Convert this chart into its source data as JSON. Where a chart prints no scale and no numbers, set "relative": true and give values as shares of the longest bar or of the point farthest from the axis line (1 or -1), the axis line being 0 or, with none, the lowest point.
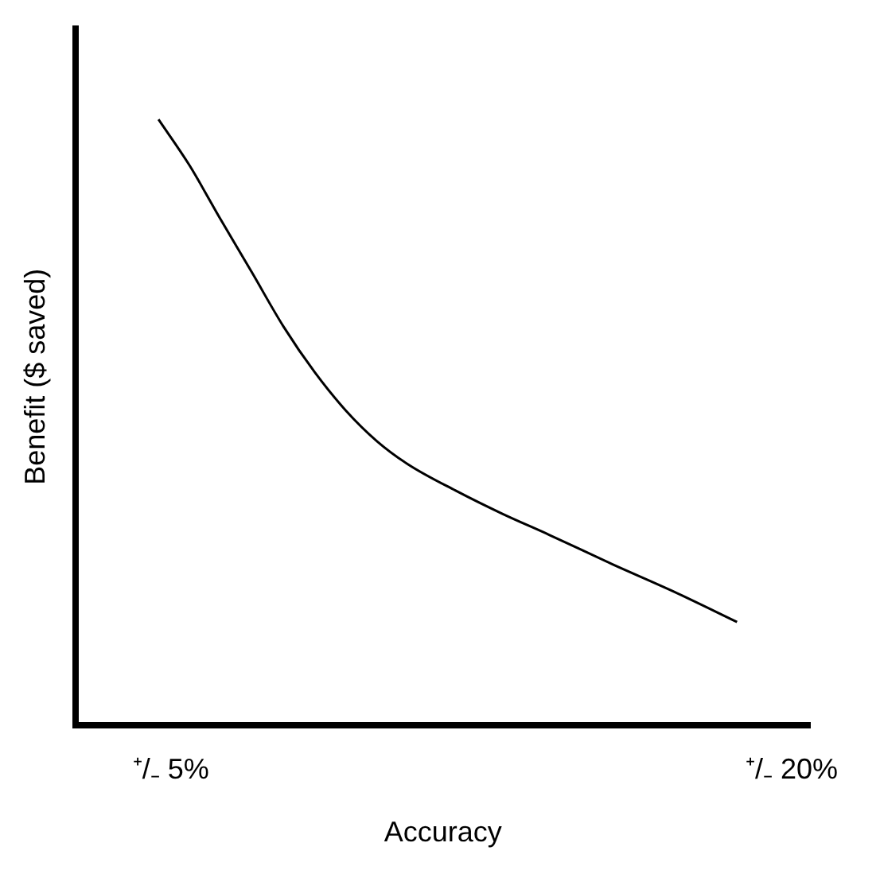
{
  "chart_data": {
    "type": "line",
    "xlabel": "Accuracy",
    "ylabel": "Benefit ($ saved)",
    "relative": true,
    "grid": false,
    "legend": false,
    "marker": "none",
    "line_style": "solid",
    "xlim": [
      2.7,
      20.45
    ],
    "xticks": [
      {
        "value": 5,
        "label": "⁺/₋ 5%"
      },
      {
        "value": 20,
        "label": "⁺/₋ 20%"
      }
    ],
    "series": [
      {
        "color": "#000000",
        "x": [
          4.7,
          5.45,
          6.2,
          6.96,
          7.72,
          8.48,
          9.23,
          9.99,
          10.74,
          11.88,
          13.0,
          14.14,
          15.65,
          17.16,
          18.68
        ],
        "values": [
          1,
          0.924,
          0.835,
          0.747,
          0.658,
          0.582,
          0.519,
          0.468,
          0.43,
          0.387,
          0.349,
          0.314,
          0.266,
          0.22,
          0.17
        ]
      }
    ]
  }
}
